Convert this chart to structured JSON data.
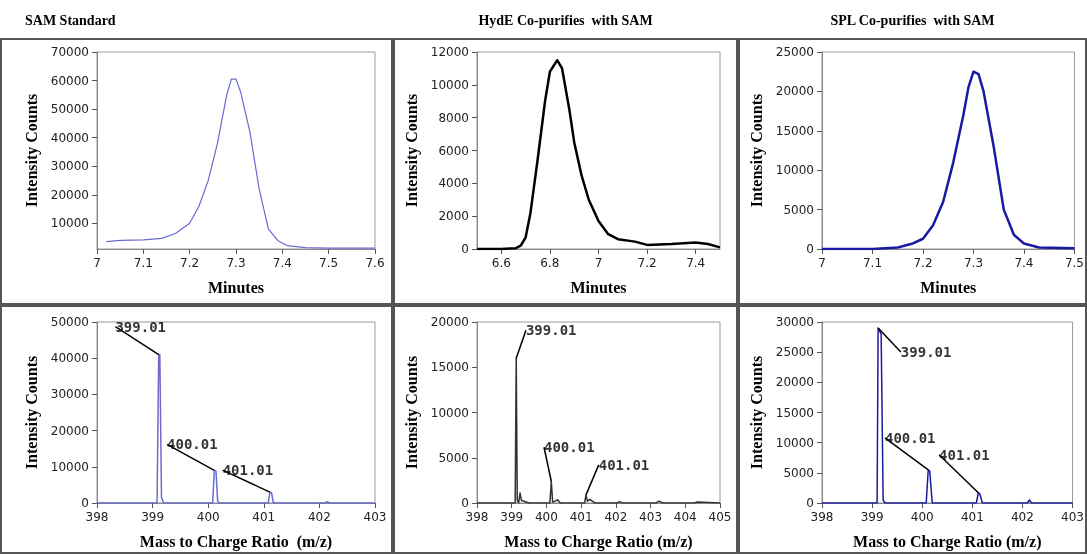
{
  "chart_data": [
    {
      "type": "line",
      "title": "SAM Standard",
      "xlabel": "Minutes",
      "ylabel": "Intensity Counts",
      "xlim": [
        7,
        7.6
      ],
      "xticks": [
        7,
        7.1,
        7.2,
        7.3,
        7.4,
        7.5,
        7.6
      ],
      "ylim": [
        1000,
        70000
      ],
      "yticks": [
        10000,
        20000,
        30000,
        40000,
        50000,
        60000,
        70000
      ],
      "series": [
        {
          "color": "#6a6ad0",
          "x": [
            7.02,
            7.05,
            7.1,
            7.14,
            7.17,
            7.2,
            7.22,
            7.24,
            7.26,
            7.28,
            7.29,
            7.3,
            7.31,
            7.33,
            7.35,
            7.37,
            7.39,
            7.41,
            7.45,
            7.5,
            7.6
          ],
          "values": [
            3600,
            4000,
            4200,
            4700,
            6500,
            10000,
            16000,
            25000,
            38000,
            55000,
            60500,
            60500,
            56000,
            42000,
            22000,
            8000,
            4000,
            2200,
            1500,
            1300,
            1300
          ]
        }
      ]
    },
    {
      "type": "line",
      "title": "HydE Co-purifies  with SAM",
      "xlabel": "Minutes",
      "ylabel": "Intensity Counts",
      "xlim": [
        6.5,
        7.5
      ],
      "xticks": [
        6.6,
        6.8,
        7,
        7.2,
        7.4
      ],
      "ylim": [
        0,
        12000
      ],
      "yticks": [
        0,
        2000,
        4000,
        6000,
        8000,
        10000,
        12000
      ],
      "series": [
        {
          "color": "#000000",
          "x": [
            6.5,
            6.6,
            6.66,
            6.68,
            6.7,
            6.72,
            6.75,
            6.78,
            6.8,
            6.83,
            6.85,
            6.88,
            6.9,
            6.93,
            6.96,
            7.0,
            7.04,
            7.08,
            7.15,
            7.2,
            7.3,
            7.35,
            7.4,
            7.45,
            7.5
          ],
          "values": [
            0,
            0,
            50,
            200,
            700,
            2200,
            5500,
            9000,
            10800,
            11500,
            11000,
            8500,
            6500,
            4500,
            3000,
            1700,
            900,
            600,
            450,
            250,
            300,
            350,
            400,
            300,
            100
          ]
        }
      ]
    },
    {
      "type": "line",
      "title": "SPL Co-purifies  with SAM",
      "xlabel": "Minutes",
      "ylabel": "Intensity Counts",
      "xlim": [
        7,
        7.5
      ],
      "xticks": [
        7,
        7.1,
        7.2,
        7.3,
        7.4,
        7.5
      ],
      "ylim": [
        0,
        25000
      ],
      "yticks": [
        0,
        5000,
        10000,
        15000,
        20000,
        25000
      ],
      "series": [
        {
          "color": "#1a1aa0",
          "x": [
            7.0,
            7.1,
            7.15,
            7.18,
            7.2,
            7.22,
            7.24,
            7.26,
            7.28,
            7.29,
            7.3,
            7.31,
            7.32,
            7.34,
            7.36,
            7.38,
            7.4,
            7.43,
            7.5
          ],
          "values": [
            0,
            0,
            200,
            700,
            1300,
            3000,
            6000,
            11000,
            17000,
            20500,
            22500,
            22200,
            20000,
            13000,
            5000,
            1800,
            700,
            200,
            100
          ]
        }
      ]
    },
    {
      "type": "line",
      "xlabel": "Mass to Charge Ratio  (m/z)",
      "ylabel": "Intensity Counts",
      "xlim": [
        398,
        403
      ],
      "xticks": [
        398,
        399,
        400,
        401,
        402,
        403
      ],
      "ylim": [
        0,
        50000
      ],
      "yticks": [
        0,
        10000,
        20000,
        30000,
        40000,
        50000
      ],
      "series": [
        {
          "color": "#6a6ad0",
          "x": [
            398,
            399.08,
            399.11,
            399.13,
            399.16,
            399.2,
            400.08,
            400.11,
            400.14,
            400.17,
            400.2,
            401.08,
            401.11,
            401.14,
            401.17,
            401.2,
            402.1,
            402.14,
            402.18,
            403
          ],
          "values": [
            0,
            0,
            41000,
            41000,
            1500,
            0,
            0,
            9000,
            8800,
            500,
            0,
            0,
            3000,
            2800,
            200,
            0,
            0,
            400,
            0,
            0
          ]
        }
      ],
      "annotations": [
        {
          "text": "399.01",
          "x": 399.11,
          "y": 41000
        },
        {
          "text": "400.01",
          "x": 400.11,
          "y": 9000
        },
        {
          "text": "401.01",
          "x": 401.11,
          "y": 3000
        }
      ]
    },
    {
      "type": "line",
      "xlabel": "Mass to Charge Ratio (m/z)",
      "ylabel": "Intensity Counts",
      "xlim": [
        398,
        405
      ],
      "xticks": [
        398,
        399,
        400,
        401,
        402,
        403,
        404,
        405
      ],
      "ylim": [
        0,
        20000
      ],
      "yticks": [
        0,
        5000,
        10000,
        15000,
        20000
      ],
      "series": [
        {
          "color": "#333333",
          "x": [
            398,
            399.1,
            399.13,
            399.16,
            399.2,
            399.24,
            399.28,
            399.35,
            399.5,
            400.1,
            400.14,
            400.18,
            400.25,
            400.32,
            400.4,
            401.1,
            401.14,
            401.18,
            401.25,
            401.32,
            401.4,
            402.05,
            402.1,
            402.2,
            403.15,
            403.25,
            403.35,
            404.25,
            404.35,
            405
          ],
          "values": [
            0,
            0,
            16000,
            300,
            0,
            1100,
            300,
            200,
            0,
            0,
            2400,
            100,
            200,
            350,
            0,
            0,
            900,
            200,
            400,
            200,
            0,
            0,
            150,
            0,
            0,
            200,
            0,
            0,
            100,
            0
          ]
        }
      ],
      "annotations": [
        {
          "text": "399.01",
          "x": 399.13,
          "y": 16000
        },
        {
          "text": "400.01",
          "x": 400.14,
          "y": 2400
        },
        {
          "text": "401.01",
          "x": 401.14,
          "y": 900
        }
      ]
    },
    {
      "type": "line",
      "xlabel": "Mass to Charge Ratio (m/z)",
      "ylabel": "Intensity Counts",
      "xlim": [
        398,
        403
      ],
      "xticks": [
        398,
        399,
        400,
        401,
        402,
        403
      ],
      "ylim": [
        0,
        30000
      ],
      "yticks": [
        0,
        5000,
        10000,
        15000,
        20000,
        25000,
        30000
      ],
      "series": [
        {
          "color": "#1a1aa0",
          "x": [
            398,
            399.1,
            399.12,
            399.18,
            399.22,
            399.26,
            400.08,
            400.12,
            400.15,
            400.2,
            401.08,
            401.12,
            401.15,
            401.2,
            402.1,
            402.14,
            402.18,
            403
          ],
          "values": [
            0,
            0,
            29000,
            28000,
            500,
            0,
            0,
            5500,
            5300,
            0,
            0,
            1700,
            1500,
            0,
            0,
            500,
            0,
            0
          ]
        }
      ],
      "annotations": [
        {
          "text": "399.01",
          "x": 399.12,
          "y": 29000
        },
        {
          "text": "400.01",
          "x": 400.12,
          "y": 5500
        },
        {
          "text": "401.01",
          "x": 401.12,
          "y": 1700
        }
      ]
    }
  ]
}
